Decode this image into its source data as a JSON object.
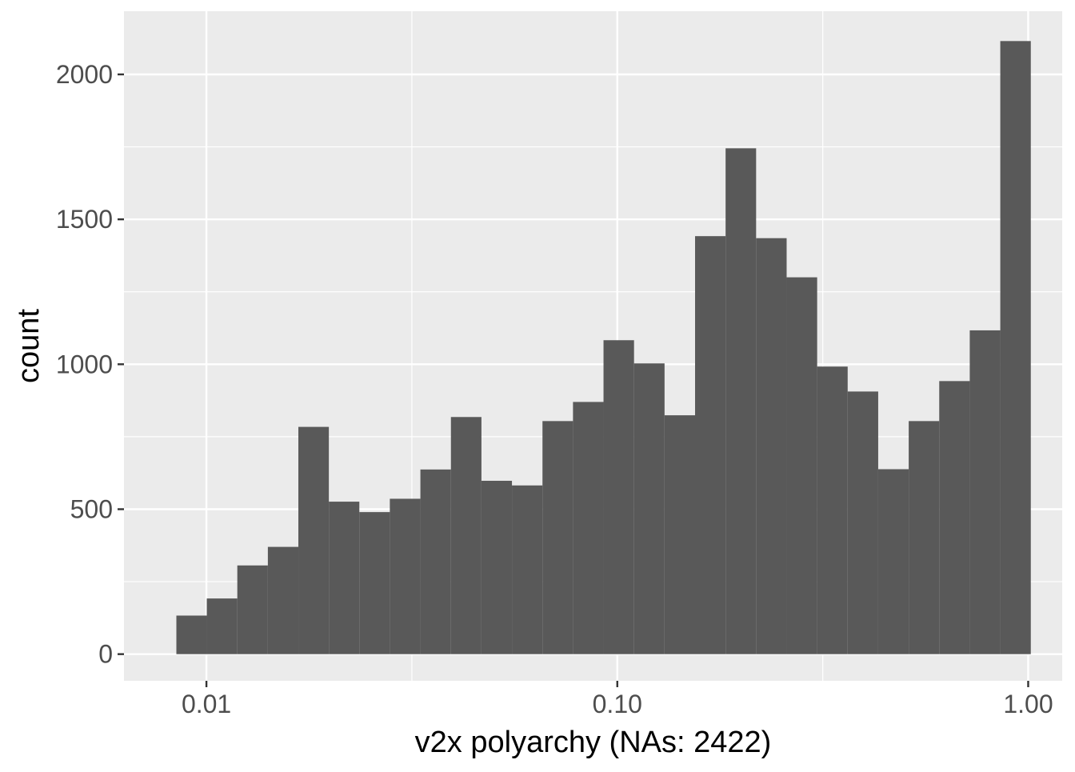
{
  "chart_data": {
    "type": "bar",
    "title": "",
    "xlabel": "v2x polyarchy (NAs: 2422)",
    "ylabel": "count",
    "x_scale": "log10",
    "xlim": [
      0.0063,
      1.21
    ],
    "ylim": [
      -92,
      2218
    ],
    "x_ticks": [
      {
        "value": 0.01,
        "label": "0.01"
      },
      {
        "value": 0.1,
        "label": "0.10"
      },
      {
        "value": 1.0,
        "label": "1.00"
      }
    ],
    "y_ticks": [
      {
        "value": 0,
        "label": "0"
      },
      {
        "value": 500,
        "label": "500"
      },
      {
        "value": 1000,
        "label": "1000"
      },
      {
        "value": 1500,
        "label": "1500"
      },
      {
        "value": 2000,
        "label": "2000"
      }
    ],
    "grid": true,
    "bin_edges": [
      0.00845,
      0.01002,
      0.01189,
      0.01411,
      0.01674,
      0.01986,
      0.02356,
      0.02795,
      0.03317,
      0.03936,
      0.0467,
      0.05541,
      0.06575,
      0.07801,
      0.09256,
      0.10983,
      0.13031,
      0.15462,
      0.18346,
      0.21768,
      0.25829,
      0.30647,
      0.36364,
      0.43147,
      0.51195,
      0.60745,
      0.72077,
      0.85522,
      1.01475
    ],
    "values": [
      133,
      192,
      306,
      370,
      784,
      526,
      490,
      536,
      637,
      818,
      598,
      582,
      804,
      870,
      1083,
      1003,
      824,
      1442,
      1745,
      1435,
      1300,
      992,
      906,
      638,
      804,
      942,
      1117,
      2115
    ],
    "colors": {
      "panel": "#ebebeb",
      "grid_major": "#ffffff",
      "bar": "#595959",
      "tick_text": "#4d4d4d",
      "axis_title": "#000000"
    }
  }
}
